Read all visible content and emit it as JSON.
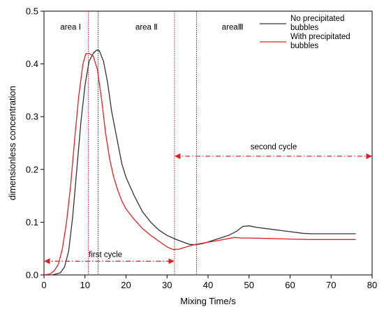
{
  "colors": {
    "no_bubbles": "#333333",
    "with_bubbles": "#e02020",
    "cycle_arrow": "#e02020"
  },
  "chart_data": {
    "type": "line",
    "xlabel": "Mixing Time/s",
    "ylabel": "dimensionless concentration",
    "xlim": [
      0,
      80
    ],
    "ylim": [
      0,
      0.5
    ],
    "xticks": [
      "0",
      "10",
      "20",
      "30",
      "40",
      "50",
      "60",
      "70",
      "80"
    ],
    "yticks": [
      "0.0",
      "0.1",
      "0.2",
      "0.3",
      "0.4",
      "0.5"
    ],
    "grid": false,
    "legend_position": "top-right",
    "legend": {
      "no_bubbles": [
        "No precipitated",
        "bubbles"
      ],
      "with_bubbles": [
        "With precipitated",
        "bubbles"
      ]
    },
    "series": [
      {
        "name": "No precipitated bubbles",
        "key": "no_bubbles",
        "x": [
          0,
          2,
          4,
          5,
          6,
          7,
          8,
          9,
          10,
          11,
          12,
          12.8,
          13.5,
          14.5,
          15.5,
          16.5,
          17.5,
          19,
          20,
          22,
          24,
          26,
          28,
          30,
          32,
          34,
          35.5,
          37,
          39,
          41,
          43,
          45,
          47,
          48.5,
          50,
          52,
          55,
          58,
          60,
          63,
          65,
          70,
          72,
          76
        ],
        "y": [
          0,
          0.0,
          0.004,
          0.015,
          0.045,
          0.11,
          0.2,
          0.29,
          0.36,
          0.405,
          0.42,
          0.426,
          0.425,
          0.405,
          0.365,
          0.31,
          0.27,
          0.21,
          0.185,
          0.15,
          0.12,
          0.1,
          0.085,
          0.075,
          0.068,
          0.062,
          0.058,
          0.057,
          0.06,
          0.065,
          0.07,
          0.075,
          0.083,
          0.092,
          0.093,
          0.09,
          0.087,
          0.084,
          0.082,
          0.079,
          0.078,
          0.078,
          0.078,
          0.078
        ]
      },
      {
        "name": "With precipitated bubbles",
        "key": "with_bubbles",
        "x": [
          0,
          1.5,
          2.5,
          3.5,
          4.5,
          5.5,
          6.5,
          7.5,
          8.5,
          9.5,
          10.2,
          11,
          12,
          13,
          14,
          15,
          16,
          17,
          18,
          19,
          20,
          22,
          24,
          26,
          28,
          30,
          31.5,
          33,
          35,
          37,
          40,
          43,
          45,
          46.5,
          48,
          50,
          55,
          60,
          65,
          70,
          76
        ],
        "y": [
          0,
          0.002,
          0.008,
          0.02,
          0.05,
          0.1,
          0.17,
          0.26,
          0.34,
          0.4,
          0.419,
          0.42,
          0.415,
          0.39,
          0.335,
          0.27,
          0.22,
          0.185,
          0.16,
          0.14,
          0.125,
          0.105,
          0.088,
          0.075,
          0.064,
          0.053,
          0.048,
          0.049,
          0.054,
          0.058,
          0.062,
          0.066,
          0.069,
          0.071,
          0.07,
          0.07,
          0.069,
          0.068,
          0.067,
          0.067,
          0.067
        ]
      }
    ],
    "region_lines": [
      {
        "x": 10.8,
        "color": "#e02020"
      },
      {
        "x": 13.2,
        "color": "#333333"
      },
      {
        "x": 31.8,
        "color": "#e02020"
      },
      {
        "x": 37.2,
        "color": "#333333"
      }
    ],
    "region_labels": [
      {
        "text": "area Ⅰ",
        "x": 6.5,
        "y": 0.465
      },
      {
        "text": "area Ⅱ",
        "x": 25,
        "y": 0.465
      },
      {
        "text": "areaⅢ",
        "x": 46,
        "y": 0.465
      }
    ],
    "cycles": [
      {
        "label": "first cycle",
        "x_start": 0,
        "x_end": 31.8,
        "y": 0.026,
        "label_x": 15,
        "label_y": 0.034
      },
      {
        "label": "second cycle",
        "x_start": 31.8,
        "x_end": 80,
        "y": 0.225,
        "label_x": 56,
        "label_y": 0.238
      }
    ]
  }
}
